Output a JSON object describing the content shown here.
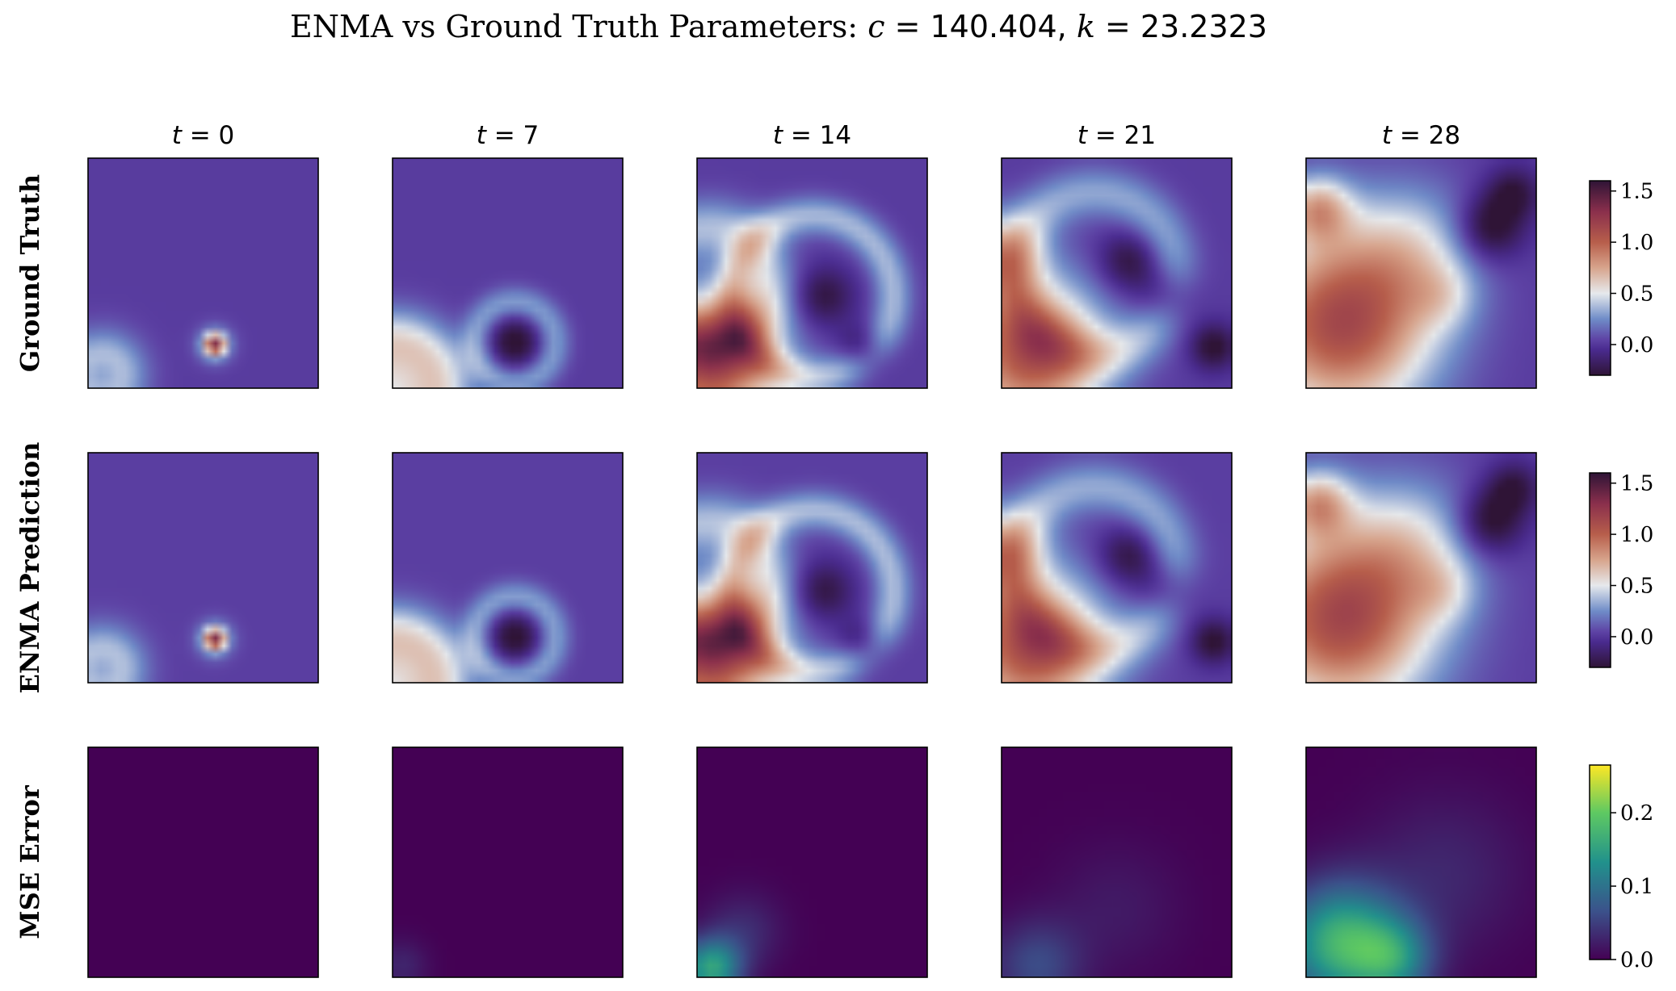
{
  "figure": {
    "title_prefix": "ENMA vs Ground Truth Parameters: ",
    "title_c_label": "c",
    "title_c_value": "140.404",
    "title_k_label": "k",
    "title_k_value": "23.2323",
    "equals": " = ",
    "separator": ", "
  },
  "chart_data": {
    "type": "heatmap",
    "columns": [
      {
        "var": "t",
        "value": "0"
      },
      {
        "var": "t",
        "value": "7"
      },
      {
        "var": "t",
        "value": "14"
      },
      {
        "var": "t",
        "value": "21"
      },
      {
        "var": "t",
        "value": "28"
      }
    ],
    "rows": [
      {
        "label": "Ground Truth",
        "colormap": "twilight_shifted",
        "vmin": -0.3,
        "vmax": 1.6,
        "ticks": [
          {
            "value": 1.5,
            "label": "1.5"
          },
          {
            "value": 1.0,
            "label": "1.0"
          },
          {
            "value": 0.5,
            "label": "0.5"
          },
          {
            "value": 0.0,
            "label": "0.0"
          }
        ]
      },
      {
        "label": "ENMA Prediction",
        "colormap": "twilight_shifted",
        "vmin": -0.3,
        "vmax": 1.6,
        "ticks": [
          {
            "value": 1.5,
            "label": "1.5"
          },
          {
            "value": 1.0,
            "label": "1.0"
          },
          {
            "value": 0.5,
            "label": "0.5"
          },
          {
            "value": 0.0,
            "label": "0.0"
          }
        ]
      },
      {
        "label": "MSE Error",
        "colormap": "viridis",
        "vmin": 0.0,
        "vmax": 0.265,
        "ticks": [
          {
            "value": 0.2,
            "label": "0.2"
          },
          {
            "value": 0.1,
            "label": "0.1"
          },
          {
            "value": 0.0,
            "label": "0.0"
          }
        ]
      }
    ],
    "colormaps": {
      "twilight_shifted": [
        {
          "v": -0.3,
          "c": "#2f1436"
        },
        {
          "v": -0.05,
          "c": "#4a2b8f"
        },
        {
          "v": 0.05,
          "c": "#5e43a5"
        },
        {
          "v": 0.25,
          "c": "#6f8cc8"
        },
        {
          "v": 0.5,
          "c": "#e6e9ec"
        },
        {
          "v": 0.75,
          "c": "#d7a48c"
        },
        {
          "v": 1.0,
          "c": "#b75e4b"
        },
        {
          "v": 1.3,
          "c": "#8a2f4c"
        },
        {
          "v": 1.6,
          "c": "#2f1436"
        }
      ],
      "viridis": [
        {
          "v": 0.0,
          "c": "#440154"
        },
        {
          "v": 0.066,
          "c": "#3b528b"
        },
        {
          "v": 0.132,
          "c": "#21918c"
        },
        {
          "v": 0.2,
          "c": "#5ec962"
        },
        {
          "v": 0.265,
          "c": "#fde725"
        }
      ]
    },
    "fields": {
      "0": {
        "gt": [
          {
            "type": "gauss",
            "x": 0.06,
            "y": 0.94,
            "s": 0.065,
            "a": -0.45
          },
          {
            "type": "gauss",
            "x": 0.06,
            "y": 0.94,
            "s": 0.11,
            "a": 0.75
          },
          {
            "type": "gauss",
            "x": 0.55,
            "y": 0.81,
            "s": 0.03,
            "a": 1.0
          },
          {
            "type": "gauss",
            "x": 0.55,
            "y": 0.81,
            "s": 0.055,
            "a": 0.35
          }
        ],
        "mse": []
      },
      "7": {
        "gt": [
          {
            "type": "ring",
            "x": 0.53,
            "y": 0.8,
            "r": 0.17,
            "w": 0.05,
            "a": 0.3
          },
          {
            "type": "gauss",
            "x": 0.53,
            "y": 0.8,
            "s": 0.08,
            "a": -0.35
          },
          {
            "type": "ring",
            "x": 0.0,
            "y": 1.0,
            "r": 0.2,
            "w": 0.1,
            "a": 0.55
          },
          {
            "type": "gauss",
            "x": 0.0,
            "y": 1.0,
            "s": 0.1,
            "a": 0.4
          }
        ],
        "mse": [
          {
            "type": "gauss",
            "x": 0.04,
            "y": 0.95,
            "s": 0.08,
            "a": 0.03
          }
        ]
      },
      "14": {
        "gt": [
          {
            "type": "gauss",
            "x": 0.06,
            "y": 0.88,
            "s": 0.2,
            "a": 1.1
          },
          {
            "type": "ring",
            "x": 0.5,
            "y": 0.6,
            "r": 0.35,
            "w": 0.06,
            "a": 0.35
          },
          {
            "type": "ring",
            "x": 0.05,
            "y": 0.55,
            "r": 0.25,
            "w": 0.09,
            "a": 0.35
          },
          {
            "type": "gauss",
            "x": 0.55,
            "y": 0.6,
            "s": 0.09,
            "a": -0.3
          },
          {
            "type": "gauss",
            "x": 0.72,
            "y": 0.83,
            "s": 0.07,
            "a": -0.3
          }
        ],
        "mse": [
          {
            "type": "gauss",
            "x": 0.06,
            "y": 0.96,
            "s": 0.09,
            "a": 0.15
          },
          {
            "type": "gauss",
            "x": 0.2,
            "y": 0.8,
            "s": 0.12,
            "a": 0.035
          }
        ]
      },
      "21": {
        "gt": [
          {
            "type": "gauss",
            "x": 0.12,
            "y": 0.85,
            "s": 0.22,
            "a": 1.05
          },
          {
            "type": "gauss",
            "x": 0.0,
            "y": 0.42,
            "s": 0.12,
            "a": 0.55
          },
          {
            "type": "ring",
            "x": 0.4,
            "y": 0.5,
            "r": 0.35,
            "w": 0.08,
            "a": 0.3
          },
          {
            "type": "gauss",
            "x": 0.55,
            "y": 0.45,
            "s": 0.09,
            "a": -0.3
          },
          {
            "type": "gauss",
            "x": 0.92,
            "y": 0.82,
            "s": 0.07,
            "a": -0.35
          },
          {
            "type": "gauss",
            "x": 0.72,
            "y": 0.6,
            "s": 0.09,
            "a": -0.25
          }
        ],
        "mse": [
          {
            "type": "gauss",
            "x": 0.15,
            "y": 0.95,
            "s": 0.14,
            "a": 0.06
          },
          {
            "type": "gauss",
            "x": 0.5,
            "y": 0.7,
            "s": 0.2,
            "a": 0.02
          }
        ]
      },
      "28": {
        "gt": [
          {
            "type": "gauss",
            "x": 0.15,
            "y": 0.72,
            "s": 0.28,
            "a": 1.1
          },
          {
            "type": "gauss",
            "x": 0.05,
            "y": 0.22,
            "s": 0.1,
            "a": 0.6
          },
          {
            "type": "gauss",
            "x": 0.45,
            "y": 0.4,
            "s": 0.2,
            "a": 0.35
          },
          {
            "type": "gauss",
            "x": 0.8,
            "y": 0.3,
            "s": 0.1,
            "a": -0.4
          },
          {
            "type": "gauss",
            "x": 0.6,
            "y": 0.6,
            "s": 0.1,
            "a": 0.2
          },
          {
            "type": "gauss",
            "x": 0.9,
            "y": 0.15,
            "s": 0.08,
            "a": -0.3
          }
        ],
        "mse": [
          {
            "type": "gauss",
            "x": 0.15,
            "y": 0.85,
            "s": 0.18,
            "a": 0.17
          },
          {
            "type": "gauss",
            "x": 0.38,
            "y": 0.92,
            "s": 0.12,
            "a": 0.1
          },
          {
            "type": "gauss",
            "x": 0.6,
            "y": 0.55,
            "s": 0.25,
            "a": 0.03
          }
        ]
      }
    }
  }
}
